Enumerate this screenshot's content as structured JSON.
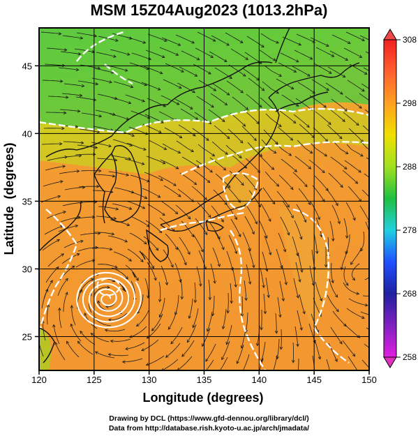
{
  "title": "MSM 15Z04Aug2023 (1013.2hPa)",
  "x_axis": {
    "label": "Longitude (degrees)",
    "ticks": [
      120,
      125,
      130,
      135,
      140,
      145,
      150
    ],
    "range": [
      120,
      150
    ]
  },
  "y_axis": {
    "label": "Latitude  (degrees)",
    "ticks": [
      25,
      30,
      35,
      40,
      45
    ],
    "range": [
      22.5,
      47.8
    ]
  },
  "colorbar": {
    "ticks": [
      258,
      268,
      278,
      288,
      298,
      308
    ],
    "range": [
      258,
      308
    ],
    "colors": [
      "#e020e0",
      "#2020a0",
      "#1e60ff",
      "#20d0e0",
      "#20c040",
      "#a0e020",
      "#f0e000",
      "#ffa020",
      "#ff6030",
      "#f02020"
    ]
  },
  "credits": {
    "line1": "Drawing by DCL (https://www.gfd-dennou.org/library/dcl/)",
    "line2": "Data from http://database.rish.kyoto-u.ac.jp/arch/jmadata/"
  },
  "typhoon_center": {
    "lon": 126.2,
    "lat": 27.8
  }
}
